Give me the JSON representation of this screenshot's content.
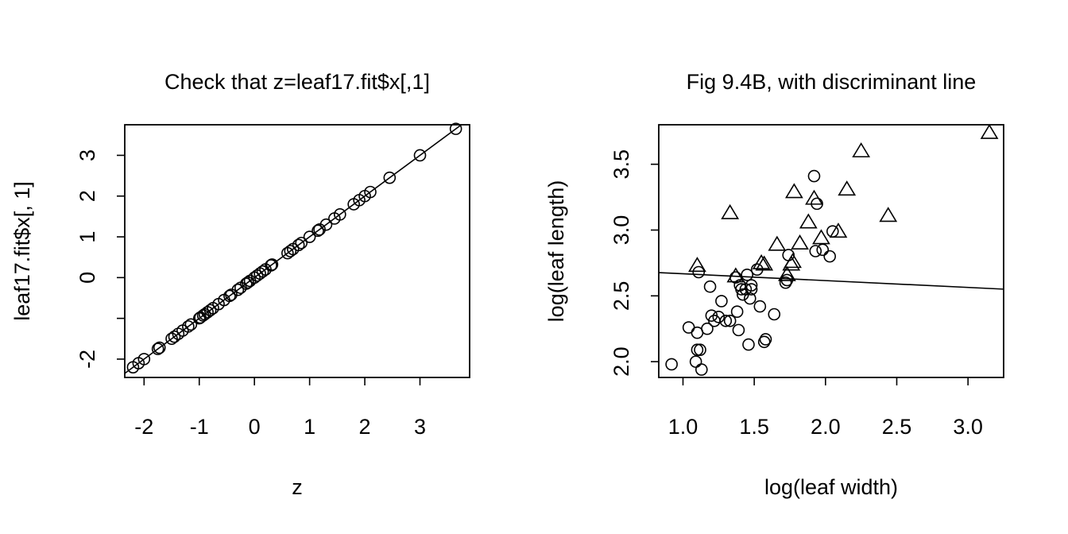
{
  "chart_data": [
    {
      "type": "scatter",
      "title": "Check that z=leaf17.fit$x[,1]",
      "xlabel": "z",
      "ylabel": "leaf17.fit$x[, 1]",
      "xlim": [
        -2.35,
        3.9
      ],
      "ylim": [
        -2.45,
        3.75
      ],
      "xticks": [
        -2,
        -1,
        0,
        1,
        2,
        3
      ],
      "xtick_labels": [
        "-2",
        "-1",
        "0",
        "1",
        "2",
        "3"
      ],
      "yticks": [
        -2,
        -1,
        0,
        1,
        2,
        3
      ],
      "ytick_labels": [
        "-2",
        "",
        "0",
        "1",
        "2",
        "3"
      ],
      "grid": false,
      "reference_line": {
        "intercept": 0,
        "slope": 1
      },
      "series": [
        {
          "marker": "circle",
          "x": [
            -2.2,
            -2.1,
            -2.0,
            -1.75,
            -1.72,
            -1.5,
            -1.45,
            -1.38,
            -1.3,
            -1.2,
            -1.15,
            -1.0,
            -0.98,
            -0.93,
            -0.9,
            -0.85,
            -0.8,
            -0.75,
            -0.65,
            -0.55,
            -0.45,
            -0.42,
            -0.3,
            -0.25,
            -0.15,
            -0.12,
            -0.08,
            0.0,
            0.05,
            0.1,
            0.15,
            0.2,
            0.3,
            0.32,
            0.6,
            0.65,
            0.7,
            0.8,
            0.85,
            1.0,
            1.15,
            1.18,
            1.3,
            1.45,
            1.55,
            1.8,
            1.9,
            2.0,
            2.1,
            2.45,
            3.0,
            3.65
          ],
          "y": [
            -2.2,
            -2.1,
            -2.0,
            -1.75,
            -1.72,
            -1.5,
            -1.45,
            -1.38,
            -1.3,
            -1.2,
            -1.15,
            -1.0,
            -0.98,
            -0.93,
            -0.9,
            -0.85,
            -0.8,
            -0.75,
            -0.65,
            -0.55,
            -0.45,
            -0.42,
            -0.3,
            -0.25,
            -0.15,
            -0.12,
            -0.08,
            0.0,
            0.05,
            0.1,
            0.15,
            0.2,
            0.3,
            0.32,
            0.6,
            0.65,
            0.7,
            0.8,
            0.85,
            1.0,
            1.15,
            1.18,
            1.3,
            1.45,
            1.55,
            1.8,
            1.9,
            2.0,
            2.1,
            2.45,
            3.0,
            3.65
          ]
        }
      ]
    },
    {
      "type": "scatter",
      "title": "Fig 9.4B, with discriminant line",
      "xlabel": "log(leaf width)",
      "ylabel": "log(leaf length)",
      "xlim": [
        0.83,
        3.25
      ],
      "ylim": [
        1.88,
        3.8
      ],
      "xticks": [
        1.0,
        1.5,
        2.0,
        2.5,
        3.0
      ],
      "xtick_labels": [
        "1.0",
        "1.5",
        "2.0",
        "2.5",
        "3.0"
      ],
      "yticks": [
        2.0,
        2.5,
        3.0,
        3.5
      ],
      "ytick_labels": [
        "2.0",
        "2.5",
        "3.0",
        "3.5"
      ],
      "grid": false,
      "reference_line": {
        "intercept": 2.72,
        "slope": -0.052
      },
      "series": [
        {
          "marker": "circle",
          "x": [
            0.92,
            1.04,
            1.09,
            1.1,
            1.1,
            1.11,
            1.12,
            1.13,
            1.17,
            1.19,
            1.2,
            1.22,
            1.25,
            1.27,
            1.3,
            1.33,
            1.37,
            1.38,
            1.39,
            1.4,
            1.41,
            1.42,
            1.44,
            1.45,
            1.46,
            1.47,
            1.48,
            1.48,
            1.52,
            1.54,
            1.57,
            1.58,
            1.64,
            1.72,
            1.73,
            1.74,
            1.92,
            1.93,
            1.94,
            1.98,
            2.03,
            2.05
          ],
          "y": [
            1.98,
            2.26,
            2.0,
            2.09,
            2.22,
            2.68,
            2.09,
            1.94,
            2.25,
            2.57,
            2.35,
            2.31,
            2.34,
            2.46,
            2.31,
            2.31,
            2.64,
            2.38,
            2.24,
            2.58,
            2.55,
            2.51,
            2.55,
            2.66,
            2.13,
            2.48,
            2.58,
            2.55,
            2.7,
            2.42,
            2.15,
            2.17,
            2.36,
            2.6,
            2.62,
            2.81,
            3.41,
            2.84,
            3.2,
            2.85,
            2.8,
            2.99
          ]
        },
        {
          "marker": "triangle",
          "x": [
            1.1,
            1.33,
            1.37,
            1.55,
            1.57,
            1.66,
            1.73,
            1.76,
            1.77,
            1.78,
            1.82,
            1.88,
            1.92,
            1.97,
            2.09,
            2.15,
            2.25,
            2.44,
            3.15
          ],
          "y": [
            2.73,
            3.13,
            2.65,
            2.75,
            2.74,
            2.89,
            2.66,
            2.74,
            2.76,
            3.29,
            2.9,
            3.06,
            3.24,
            2.94,
            2.99,
            3.31,
            3.6,
            3.11,
            3.74
          ]
        }
      ]
    }
  ]
}
